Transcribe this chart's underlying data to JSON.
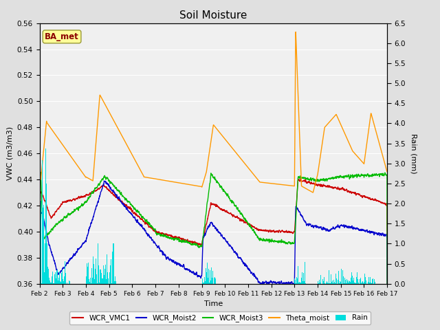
{
  "title": "Soil Moisture",
  "xlabel": "Time",
  "ylabel_left": "VWC (m3/m3)",
  "ylabel_right": "Rain (mm)",
  "ylim_left": [
    0.36,
    0.56
  ],
  "ylim_right": [
    0.0,
    6.5
  ],
  "yticks_left": [
    0.36,
    0.38,
    0.4,
    0.42,
    0.44,
    0.46,
    0.48,
    0.5,
    0.52,
    0.54,
    0.56
  ],
  "yticks_right": [
    0.0,
    0.5,
    1.0,
    1.5,
    2.0,
    2.5,
    3.0,
    3.5,
    4.0,
    4.5,
    5.0,
    5.5,
    6.0,
    6.5
  ],
  "xtick_labels": [
    "Feb 2",
    "Feb 3",
    "Feb 4",
    "Feb 5",
    "Feb 6",
    "Feb 7",
    "Feb 8",
    "Feb 9",
    "Feb 10",
    "Feb 11",
    "Feb 12",
    "Feb 13",
    "Feb 14",
    "Feb 15",
    "Feb 16",
    "Feb 17"
  ],
  "background_color": "#e0e0e0",
  "plot_bg_color": "#f0f0f0",
  "annotation_text": "BA_met",
  "annotation_color": "#8b0000",
  "annotation_bg": "#ffff99",
  "colors": {
    "WCR_VMC1": "#cc0000",
    "WCR_Moist2": "#0000cc",
    "WCR_Moist3": "#00bb00",
    "Theta_moist": "#ff9900",
    "Rain": "#00dddd"
  },
  "linewidths": {
    "WCR_VMC1": 1.0,
    "WCR_Moist2": 1.0,
    "WCR_Moist3": 1.0,
    "Theta_moist": 1.0
  }
}
